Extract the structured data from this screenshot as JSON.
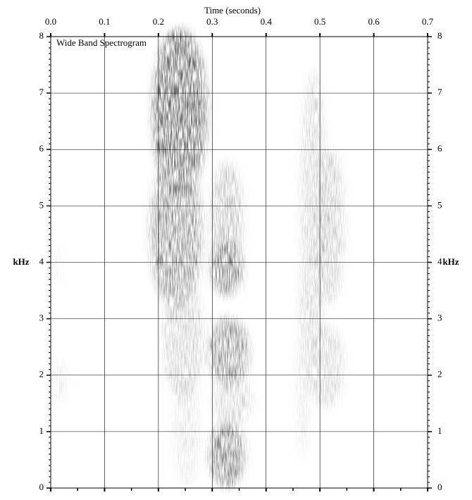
{
  "chart_data": {
    "type": "spectrogram",
    "title": "Time (seconds)",
    "annotation": "Wide Band Spectrogram",
    "y_label": "kHz",
    "xlim": [
      0,
      0.7
    ],
    "xticks": [
      {
        "value": 0,
        "label": "0.0"
      },
      0.1,
      0.2,
      0.3,
      0.4,
      0.5,
      0.6,
      0.7
    ],
    "ylim": [
      0,
      8
    ],
    "yticks": [
      0,
      1,
      2,
      3,
      4,
      5,
      6,
      7,
      8
    ],
    "grid": true
  }
}
